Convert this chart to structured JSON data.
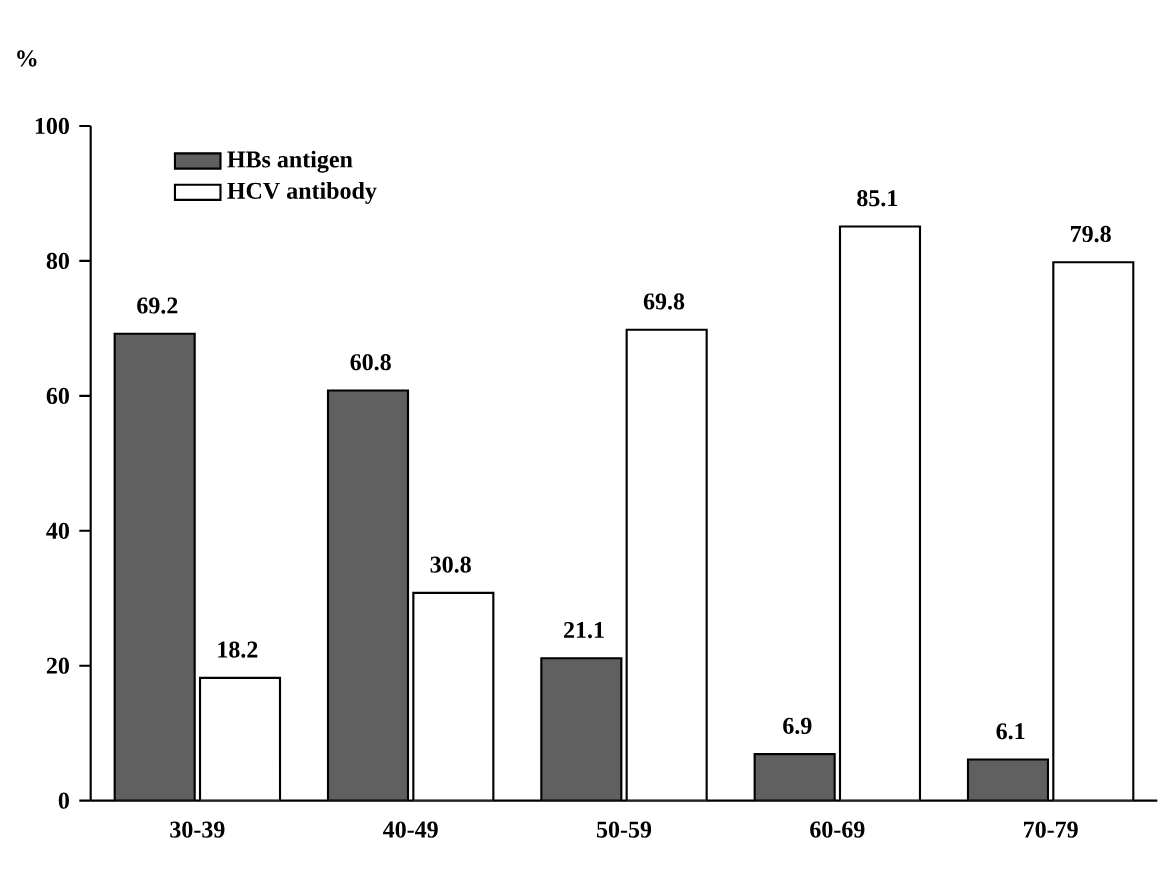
{
  "chart_data": {
    "type": "bar",
    "ylabel": "%",
    "categories": [
      "30-39",
      "40-49",
      "50-59",
      "60-69",
      "70-79"
    ],
    "series": [
      {
        "name": "HBs antigen",
        "color": "#606060",
        "values": [
          69.2,
          60.8,
          21.1,
          6.9,
          6.1
        ]
      },
      {
        "name": "HCV antibody",
        "color": "#ffffff",
        "values": [
          18.2,
          30.8,
          69.8,
          85.1,
          79.8
        ]
      }
    ],
    "ylim": [
      0,
      100
    ],
    "yticks": [
      0,
      20,
      40,
      60,
      80,
      100
    ],
    "data_labels": true,
    "legend": "top left",
    "grid": false
  }
}
